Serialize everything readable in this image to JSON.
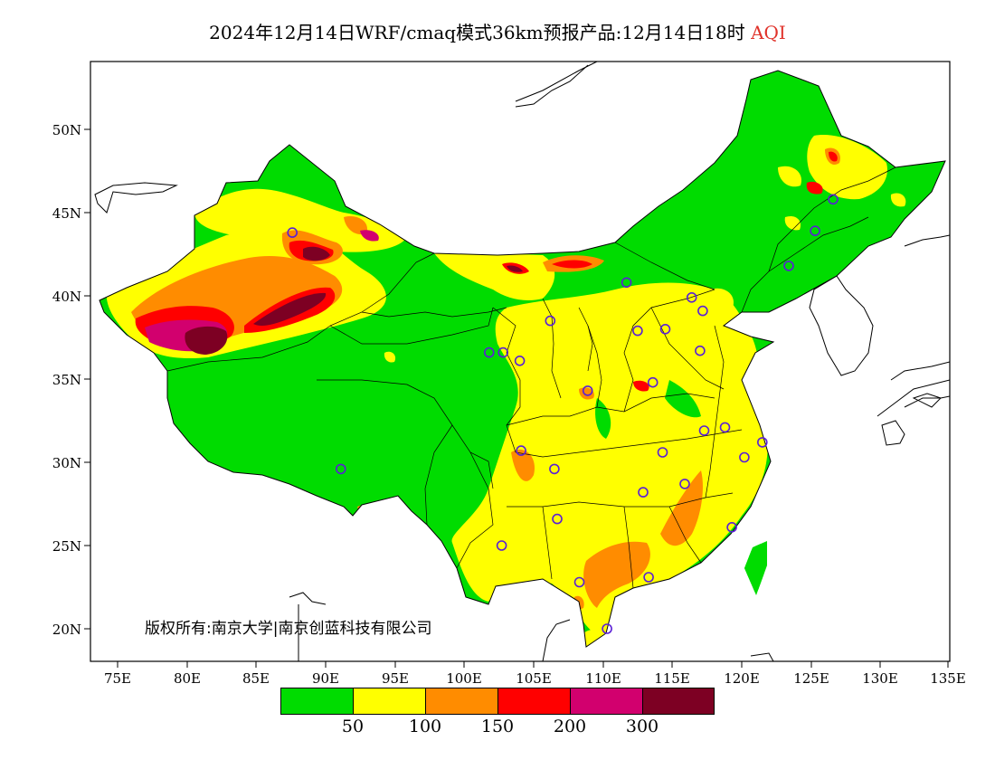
{
  "title": {
    "main": "2024年12月14日WRF/cmaq模式36km预报产品:12月14日18时",
    "variable": "AQI",
    "variable_color": "#e0322a"
  },
  "axes": {
    "lat_labels": [
      "50N",
      "45N",
      "40N",
      "35N",
      "30N",
      "25N",
      "20N"
    ],
    "lon_labels": [
      "75E",
      "80E",
      "85E",
      "90E",
      "95E",
      "100E",
      "105E",
      "110E",
      "115E",
      "120E",
      "125E",
      "130E",
      "135E"
    ],
    "lon_range": [
      73,
      135
    ],
    "lat_range": [
      18,
      54
    ]
  },
  "legend": {
    "colors": [
      "#00dc00",
      "#ffff00",
      "#ff8c00",
      "#ff0000",
      "#d2006e",
      "#7d0023"
    ],
    "labels": [
      "50",
      "100",
      "150",
      "200",
      "300"
    ]
  },
  "copyright": "版权所有:南京大学|南京创蓝科技有限公司",
  "stations": [
    [
      87.6,
      43.8
    ],
    [
      102.8,
      36.6
    ],
    [
      104.0,
      36.1
    ],
    [
      106.2,
      38.5
    ],
    [
      101.8,
      36.6
    ],
    [
      111.7,
      40.8
    ],
    [
      112.5,
      37.9
    ],
    [
      114.5,
      38.0
    ],
    [
      116.4,
      39.9
    ],
    [
      117.2,
      39.1
    ],
    [
      117.0,
      36.7
    ],
    [
      113.6,
      34.8
    ],
    [
      108.9,
      34.3
    ],
    [
      104.1,
      30.7
    ],
    [
      106.5,
      29.6
    ],
    [
      106.7,
      26.6
    ],
    [
      102.7,
      25.0
    ],
    [
      108.3,
      22.8
    ],
    [
      113.3,
      23.1
    ],
    [
      110.3,
      20.0
    ],
    [
      112.9,
      28.2
    ],
    [
      115.9,
      28.7
    ],
    [
      114.3,
      30.6
    ],
    [
      117.3,
      31.9
    ],
    [
      118.8,
      32.1
    ],
    [
      120.2,
      30.3
    ],
    [
      121.5,
      31.2
    ],
    [
      119.3,
      26.1
    ],
    [
      126.6,
      45.8
    ],
    [
      125.3,
      43.9
    ],
    [
      123.4,
      41.8
    ],
    [
      91.1,
      29.6
    ]
  ]
}
